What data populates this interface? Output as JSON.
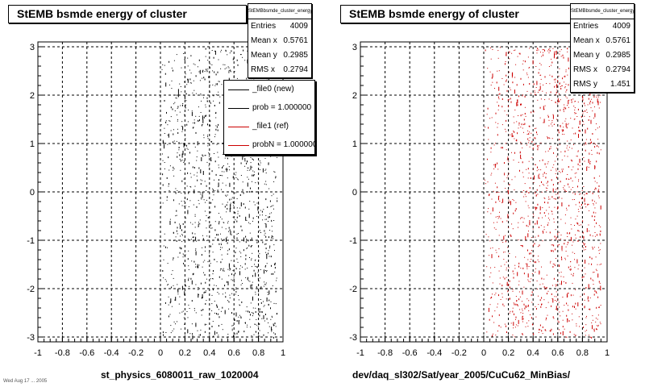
{
  "chart_data": [
    {
      "type": "scatter",
      "title": "StEMB bsmde energy of cluster",
      "xlabel": "st_physics_6080011_raw_1020004",
      "ylabel": "",
      "xlim": [
        -1,
        1
      ],
      "ylim": [
        -3.1,
        3.1
      ],
      "x_ticks": [
        "-1",
        "-0.8",
        "-0.6",
        "-0.4",
        "-0.2",
        "0",
        "0.2",
        "0.4",
        "0.6",
        "0.8",
        "1"
      ],
      "y_ticks": [
        "-3",
        "-2",
        "-1",
        "0",
        "1",
        "2",
        "3"
      ],
      "grid": true,
      "color": "#000000",
      "x_range_of_points": [
        0.0,
        0.95
      ],
      "y_range_of_points": [
        -3.0,
        3.0
      ],
      "stats": {
        "name": "StEMBbsmde_cluster_energy",
        "rows": [
          {
            "label": "Entries",
            "value": "4009"
          },
          {
            "label": "Mean x",
            "value": "0.5761"
          },
          {
            "label": "Mean y",
            "value": "0.2985"
          },
          {
            "label": "RMS x",
            "value": "0.2794"
          }
        ]
      },
      "legend": {
        "placement": "top-right",
        "entries": [
          {
            "label": "_file0 (new)",
            "color": "#000000"
          },
          {
            "label": "prob = 1.000000",
            "color": "#000000"
          },
          {
            "label": "_file1 (ref)",
            "color": "#cc0000"
          },
          {
            "label": "probN = 1.000000",
            "color": "#cc0000"
          }
        ]
      }
    },
    {
      "type": "scatter",
      "title": "StEMB bsmde energy of cluster",
      "xlabel": "dev/daq_sl302/Sat/year_2005/CuCu62_MinBias/",
      "ylabel": "",
      "xlim": [
        -1,
        1
      ],
      "ylim": [
        -3.1,
        3.1
      ],
      "x_ticks": [
        "-1",
        "-0.8",
        "-0.6",
        "-0.4",
        "-0.2",
        "0",
        "0.2",
        "0.4",
        "0.6",
        "0.8",
        "1"
      ],
      "y_ticks": [
        "-3",
        "-2",
        "-1",
        "0",
        "1",
        "2",
        "3"
      ],
      "grid": true,
      "color": "#cc0000",
      "x_range_of_points": [
        0.0,
        0.95
      ],
      "y_range_of_points": [
        -3.0,
        3.0
      ],
      "stats": {
        "name": "StEMBbsmde_cluster_energy",
        "rows": [
          {
            "label": "Entries",
            "value": "4009"
          },
          {
            "label": "Mean x",
            "value": "0.5761"
          },
          {
            "label": "Mean y",
            "value": "0.2985"
          },
          {
            "label": "RMS x",
            "value": "0.2794"
          },
          {
            "label": "RMS y",
            "value": "1.451"
          }
        ]
      }
    }
  ],
  "footer_note": "Wed Aug 17 ... 2005"
}
